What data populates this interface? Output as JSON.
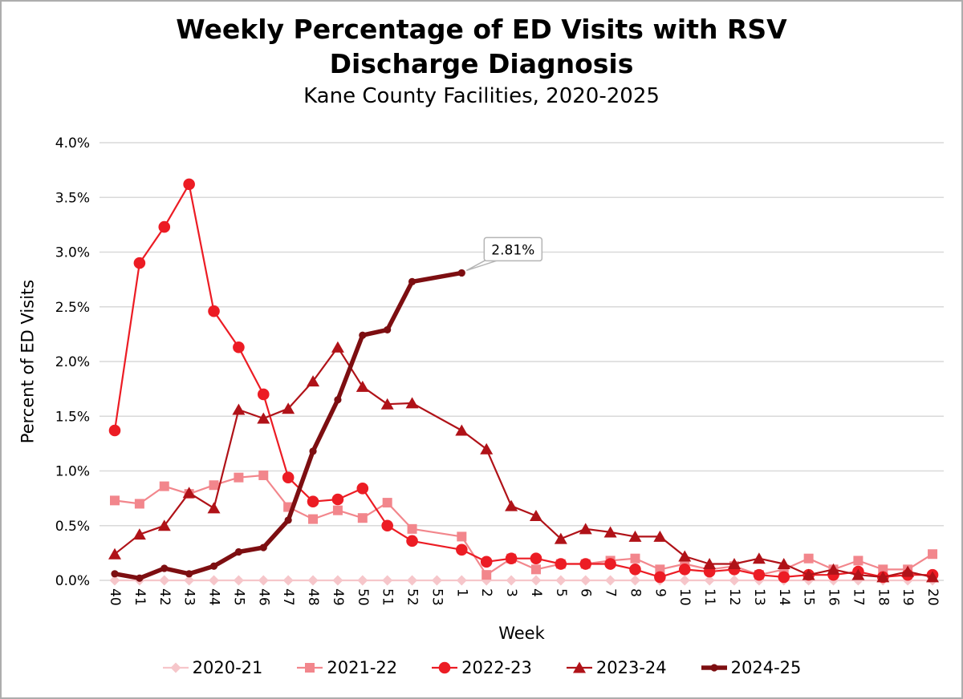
{
  "title": {
    "line1": "Weekly Percentage of ED Visits with RSV",
    "line2": "Discharge Diagnosis",
    "subtitle": "Kane County Facilities, 2020-2025"
  },
  "chart_data": {
    "type": "line",
    "xlabel": "Week",
    "ylabel": "Percent of ED Visits",
    "ylim": [
      0,
      4.0
    ],
    "grid": true,
    "grid_color": "#d9d9d9",
    "axis_text_color": "#000000",
    "legend_position": "bottom",
    "yticks": [
      {
        "value": 0.0,
        "label": "0.0%"
      },
      {
        "value": 0.5,
        "label": "0.5%"
      },
      {
        "value": 1.0,
        "label": "1.0%"
      },
      {
        "value": 1.5,
        "label": "1.5%"
      },
      {
        "value": 2.0,
        "label": "2.0%"
      },
      {
        "value": 2.5,
        "label": "2.5%"
      },
      {
        "value": 3.0,
        "label": "3.0%"
      },
      {
        "value": 3.5,
        "label": "3.5%"
      },
      {
        "value": 4.0,
        "label": "4.0%"
      }
    ],
    "categories": [
      "40",
      "41",
      "42",
      "43",
      "44",
      "45",
      "46",
      "47",
      "48",
      "49",
      "50",
      "51",
      "52",
      "53",
      "1",
      "2",
      "3",
      "4",
      "5",
      "6",
      "7",
      "8",
      "9",
      "10",
      "11",
      "12",
      "13",
      "14",
      "15",
      "16",
      "17",
      "18",
      "19",
      "20"
    ],
    "series": [
      {
        "name": "2020-21",
        "marker": "diamond",
        "color": "#f6c6ca",
        "line_width": 2.2,
        "values": [
          0,
          0,
          0,
          0,
          0,
          0,
          0,
          0,
          0,
          0,
          0,
          0,
          0,
          0,
          0,
          0,
          0,
          0,
          0,
          0,
          0,
          0,
          0,
          0,
          0,
          0,
          0,
          0,
          0,
          0,
          0,
          0,
          0,
          0
        ]
      },
      {
        "name": "2021-22",
        "marker": "square",
        "color": "#f2868c",
        "line_width": 2.2,
        "values": [
          0.73,
          0.7,
          0.86,
          0.79,
          0.87,
          0.94,
          0.96,
          0.67,
          0.56,
          0.64,
          0.57,
          0.71,
          0.47,
          null,
          0.4,
          0.05,
          0.2,
          0.1,
          0.15,
          0.15,
          0.18,
          0.2,
          0.1,
          0.15,
          0.1,
          0.13,
          0.05,
          0.1,
          0.2,
          0.1,
          0.18,
          0.1,
          0.1,
          0.24
        ]
      },
      {
        "name": "2022-23",
        "marker": "circle",
        "color": "#ec1c24",
        "line_width": 2.2,
        "values": [
          1.37,
          2.9,
          3.23,
          3.62,
          2.46,
          2.13,
          1.7,
          0.94,
          0.72,
          0.74,
          0.84,
          0.5,
          0.36,
          null,
          0.28,
          0.17,
          0.2,
          0.2,
          0.15,
          0.15,
          0.15,
          0.1,
          0.03,
          0.1,
          0.08,
          0.1,
          0.05,
          0.03,
          0.05,
          0.05,
          0.08,
          0.03,
          0.05,
          0.05
        ]
      },
      {
        "name": "2023-24",
        "marker": "triangle",
        "color": "#b01218",
        "line_width": 2.2,
        "values": [
          0.24,
          0.42,
          0.5,
          0.8,
          0.66,
          1.56,
          1.48,
          1.57,
          1.82,
          2.13,
          1.77,
          1.61,
          1.62,
          null,
          1.37,
          1.2,
          0.68,
          0.59,
          0.38,
          0.47,
          0.44,
          0.4,
          0.4,
          0.22,
          0.15,
          0.15,
          0.2,
          0.15,
          0.05,
          0.1,
          0.05,
          0.03,
          0.08,
          0.03
        ]
      },
      {
        "name": "2024-25",
        "marker": "dot",
        "color": "#7d0e11",
        "line_width": 5.5,
        "values": [
          0.06,
          0.02,
          0.11,
          0.06,
          0.13,
          0.26,
          0.3,
          0.55,
          1.18,
          1.65,
          2.24,
          2.29,
          2.73,
          null,
          2.81,
          null,
          null,
          null,
          null,
          null,
          null,
          null,
          null,
          null,
          null,
          null,
          null,
          null,
          null,
          null,
          null,
          null,
          null,
          null
        ]
      }
    ],
    "annotation": {
      "text": "2.81%",
      "series": "2024-25",
      "week": "1",
      "value": 2.81,
      "x_index": 14,
      "box_fill": "#ffffff",
      "box_border": "#b5b5b5"
    }
  }
}
